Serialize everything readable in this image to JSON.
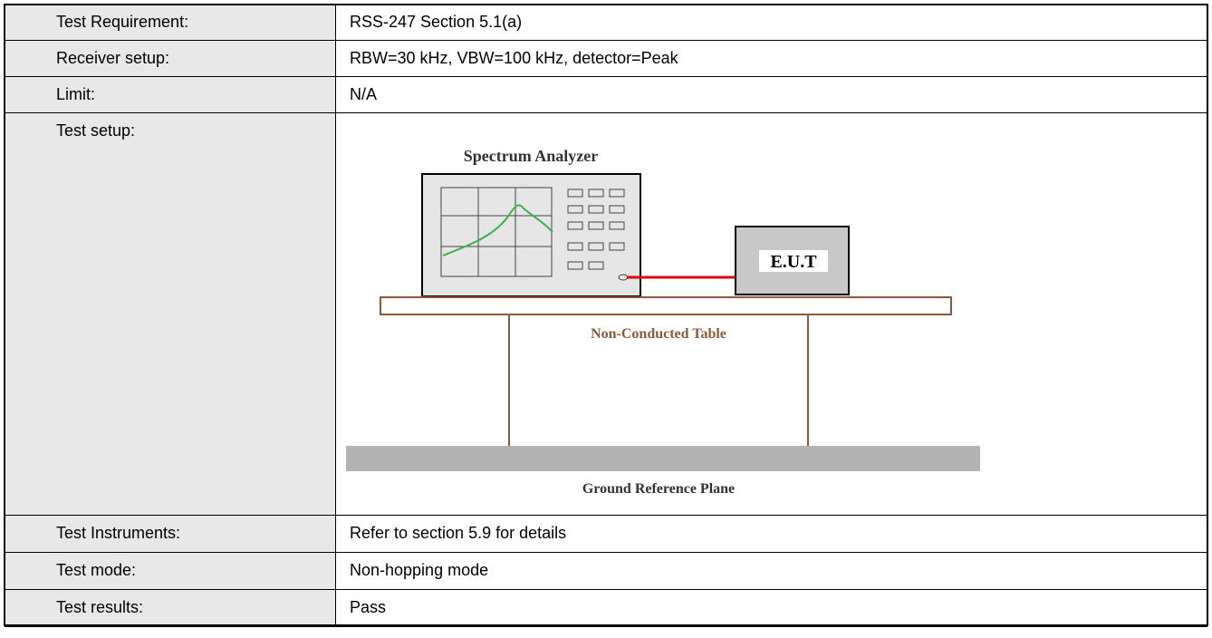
{
  "table": {
    "rows": [
      [
        "Test Requirement:",
        "RSS-247 Section 5.1(a)"
      ],
      [
        "Receiver setup:",
        "RBW=30 kHz, VBW=100 kHz, detector=Peak"
      ],
      [
        "Limit:",
        "N/A"
      ],
      [
        "Test setup:"
      ],
      [
        "Test Instruments:",
        "Refer to section 5.9 for details"
      ],
      [
        "Test mode:",
        "Non-hopping mode"
      ],
      [
        "Test results:",
        "Pass"
      ]
    ]
  },
  "diagram": {
    "analyzer": "Spectrum Analyzer",
    "eut": "E.U.T",
    "table": "Non-Conducted Table",
    "ground": "Ground Reference Plane"
  }
}
